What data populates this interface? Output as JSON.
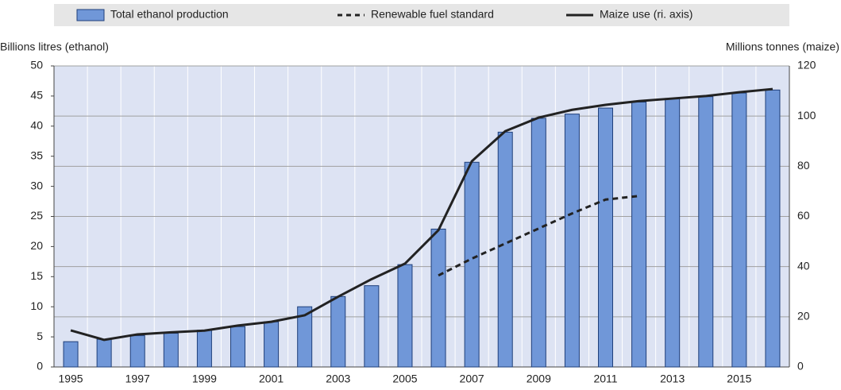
{
  "chart_data": {
    "type": "bar",
    "y_axis_label": "Billions litres (ethanol)",
    "y2_axis_label": "Millions tonnes (maize)",
    "categories": [
      "1995",
      null,
      "1997",
      null,
      "1999",
      null,
      "2001",
      null,
      "2003",
      null,
      "2005",
      null,
      "2007",
      null,
      "2009",
      null,
      "2011",
      null,
      "2013",
      null,
      "2015",
      null
    ],
    "series": [
      {
        "name": "Total ethanol production",
        "type": "bar",
        "color": "#7097d8",
        "values": [
          4.2,
          4.6,
          5.2,
          5.6,
          6.1,
          6.7,
          7.5,
          10.0,
          11.7,
          13.5,
          17.0,
          22.9,
          34.0,
          39.0,
          41.3,
          42.0,
          43.0,
          44.0,
          44.6,
          44.9,
          45.5,
          46.0
        ]
      },
      {
        "name": "Renewable fuel standard",
        "type": "line",
        "dashed": true,
        "color": "#222222",
        "values": [
          null,
          null,
          null,
          null,
          null,
          null,
          null,
          null,
          null,
          null,
          null,
          15.2,
          18.0,
          20.5,
          23.0,
          25.5,
          27.8,
          28.4,
          null,
          null,
          null,
          null
        ]
      },
      {
        "name": "Maize use (ri. axis)",
        "type": "line",
        "axis": "y2",
        "color": "#222222",
        "values": [
          14.6,
          10.8,
          13.0,
          13.8,
          14.5,
          16.5,
          18.0,
          20.6,
          28.0,
          35.0,
          41.2,
          54.5,
          82.0,
          94.0,
          99.4,
          102.5,
          104.5,
          106.0,
          107.0,
          108.0,
          109.5,
          110.8
        ]
      }
    ],
    "ylim": [
      0,
      50
    ],
    "yticks": [
      0,
      5,
      10,
      15,
      20,
      25,
      30,
      35,
      40,
      45,
      50
    ],
    "y2lim": [
      0,
      120
    ],
    "y2ticks": [
      0,
      20,
      40,
      60,
      80,
      100,
      120
    ],
    "grid": true
  }
}
